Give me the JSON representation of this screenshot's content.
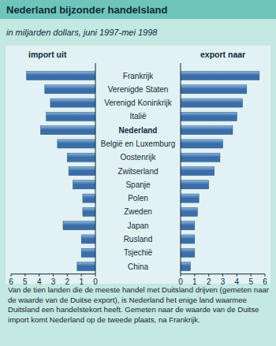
{
  "chart_data": {
    "type": "bar",
    "orientation": "horizontal",
    "title": "Nederland bijzonder handelsland",
    "subtitle": "in miljarden dollars, juni 1997-mei 1998",
    "categories": [
      "Frankrijk",
      "Verenigde Staten",
      "Verenigd Koninkrijk",
      "Italië",
      "Nederland",
      "België en Luxemburg",
      "Oostenrijk",
      "Zwitserland",
      "Spanje",
      "Polen",
      "Zweden",
      "Japan",
      "Rusland",
      "Tsjechië",
      "China"
    ],
    "series": [
      {
        "name": "import uit",
        "color": "#3b6ea8",
        "values": [
          4.9,
          3.6,
          3.2,
          3.5,
          3.9,
          2.7,
          2.0,
          1.9,
          1.6,
          0.9,
          0.9,
          2.3,
          1.0,
          1.0,
          1.3
        ]
      },
      {
        "name": "export naar",
        "color": "#3b6ea8",
        "values": [
          5.6,
          4.7,
          4.4,
          4.0,
          3.7,
          3.0,
          2.8,
          2.4,
          2.0,
          1.3,
          1.2,
          1.0,
          1.0,
          1.0,
          0.7
        ]
      }
    ],
    "xlim": [
      0,
      6
    ],
    "xticks": [
      0,
      1,
      2,
      3,
      4,
      5,
      6
    ],
    "annotation": "Van de tien landen die de meeste handel met Duitsland drijven (gemeten naar de waarde van de Duitse export), is Nederland het enige land waarmee Duitsland een handelstekort heeft. Gemeten naar de waarde van de Duitse import komt Nederland op de tweede plaats, na Frankrijk."
  }
}
